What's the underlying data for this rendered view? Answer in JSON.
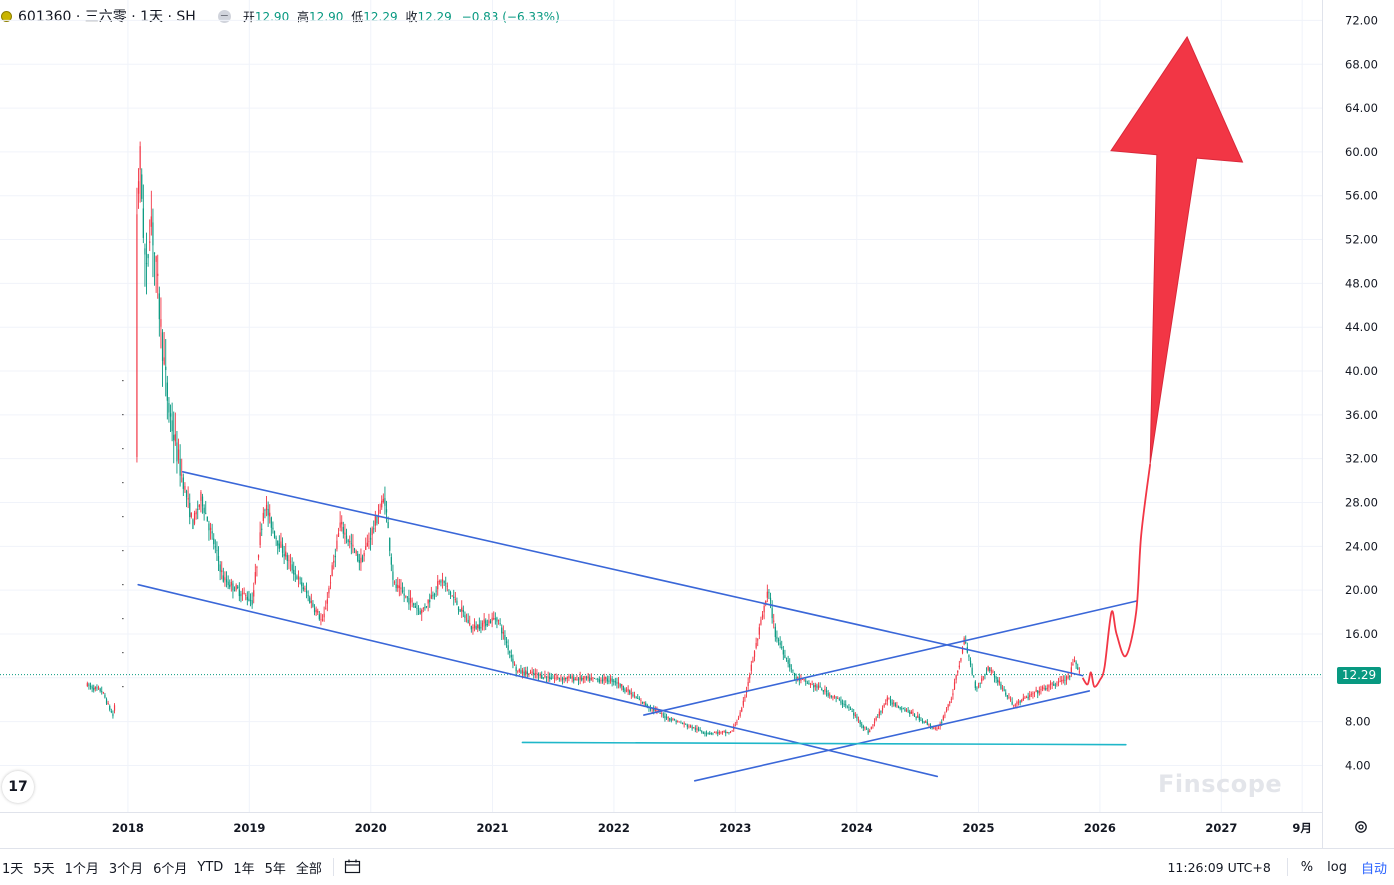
{
  "header": {
    "symbol": "601360 · 三六零 · 1天 · SH",
    "open_label": "开",
    "open": "12.90",
    "high_label": "高",
    "high": "12.90",
    "low_label": "低",
    "low": "12.29",
    "close_label": "收",
    "close": "12.29",
    "change": "−0.83 (−6.33%)"
  },
  "price_tag": "12.29",
  "watermark": "Finscope",
  "tv_logo": "17",
  "bottom_bar": {
    "ranges": [
      "1天",
      "5天",
      "1个月",
      "3个月",
      "6个月",
      "YTD",
      "1年",
      "5年",
      "全部"
    ],
    "clock": "11:26:09 UTC+8",
    "percent": "%",
    "log": "log",
    "auto": "自动"
  },
  "colors": {
    "up": "#f23645",
    "down": "#089981",
    "trendline": "#3a67d8",
    "support": "#1fb7c9",
    "arrow": "#f23645",
    "price_tag": "#089981"
  },
  "chart_data": {
    "type": "candlestick",
    "y_ticks": [
      4,
      8,
      12,
      16,
      20,
      24,
      28,
      32,
      36,
      40,
      44,
      48,
      52,
      56,
      60,
      64,
      68,
      72
    ],
    "y_tick_labels": [
      "4.00",
      "8.00",
      "",
      "16.00",
      "20.00",
      "24.00",
      "28.00",
      "32.00",
      "36.00",
      "40.00",
      "44.00",
      "48.00",
      "52.00",
      "56.00",
      "60.00",
      "64.00",
      "68.00",
      "72.00"
    ],
    "x_ticks": [
      "2018",
      "2019",
      "2020",
      "2021",
      "2022",
      "2023",
      "2024",
      "2025",
      "2026",
      "2027",
      "9月"
    ],
    "ylim": [
      0.3,
      73.5
    ],
    "last_price": 12.29,
    "price_path": [
      [
        "2017-09-01",
        11.3
      ],
      [
        "2017-10-15",
        10.8
      ],
      [
        "2017-11-20",
        8.3
      ],
      [
        "2018-02-05",
        60.0
      ],
      [
        "2018-02-25",
        48.0
      ],
      [
        "2018-03-10",
        55.0
      ],
      [
        "2018-04-10",
        44.0
      ],
      [
        "2018-05-01",
        37.0
      ],
      [
        "2018-06-01",
        32.0
      ],
      [
        "2018-07-15",
        26.0
      ],
      [
        "2018-08-10",
        28.5
      ],
      [
        "2018-10-15",
        21.0
      ],
      [
        "2019-01-10",
        19.0
      ],
      [
        "2019-02-15",
        28.0
      ],
      [
        "2019-03-20",
        25.0
      ],
      [
        "2019-05-10",
        22.0
      ],
      [
        "2019-08-10",
        17.0
      ],
      [
        "2019-10-01",
        26.0
      ],
      [
        "2019-12-01",
        22.5
      ],
      [
        "2020-02-12",
        28.5
      ],
      [
        "2020-03-10",
        20.5
      ],
      [
        "2020-06-01",
        18.0
      ],
      [
        "2020-08-01",
        21.0
      ],
      [
        "2020-11-01",
        16.5
      ],
      [
        "2021-01-15",
        17.5
      ],
      [
        "2021-03-15",
        12.6
      ],
      [
        "2021-07-01",
        12.0
      ],
      [
        "2022-01-01",
        11.8
      ],
      [
        "2022-03-15",
        10.0
      ],
      [
        "2022-06-01",
        8.5
      ],
      [
        "2022-10-01",
        7.0
      ],
      [
        "2022-12-20",
        7.0
      ],
      [
        "2023-01-20",
        9.0
      ],
      [
        "2023-04-10",
        20.0
      ],
      [
        "2023-05-01",
        16.0
      ],
      [
        "2023-07-01",
        12.0
      ],
      [
        "2023-09-15",
        11.0
      ],
      [
        "2023-12-01",
        9.5
      ],
      [
        "2024-02-05",
        7.0
      ],
      [
        "2024-04-01",
        10.0
      ],
      [
        "2024-06-01",
        9.0
      ],
      [
        "2024-09-01",
        7.2
      ],
      [
        "2024-10-15",
        10.5
      ],
      [
        "2024-11-20",
        15.5
      ],
      [
        "2024-12-25",
        11.0
      ],
      [
        "2025-02-01",
        13.0
      ],
      [
        "2025-04-15",
        9.5
      ],
      [
        "2025-07-01",
        10.8
      ],
      [
        "2025-10-01",
        12.0
      ],
      [
        "2025-10-15",
        13.6
      ],
      [
        "2025-11-01",
        12.29
      ]
    ],
    "annotations": {
      "upper_channel": [
        [
          "2018-06-15",
          30.8
        ],
        [
          "2025-11-10",
          12.2
        ]
      ],
      "lower_channel": [
        [
          "2018-02-01",
          20.5
        ],
        [
          "2024-08-30",
          3.0
        ]
      ],
      "upper_rising": [
        [
          "2022-04-01",
          8.6
        ],
        [
          "2026-04-20",
          19.0
        ]
      ],
      "lower_rising": [
        [
          "2022-09-01",
          2.6
        ],
        [
          "2025-11-30",
          10.8
        ]
      ],
      "support": [
        [
          "2021-04-01",
          6.1
        ],
        [
          "2026-03-20",
          5.9
        ]
      ],
      "forecast_curve": [
        [
          "2025-11-10",
          12.0
        ],
        [
          "2025-11-25",
          11.4
        ],
        [
          "2025-12-05",
          12.5
        ],
        [
          "2025-12-15",
          11.2
        ],
        [
          "2026-01-01",
          11.8
        ],
        [
          "2026-01-15",
          13.0
        ],
        [
          "2026-02-05",
          18.0
        ],
        [
          "2026-02-20",
          16.0
        ],
        [
          "2026-03-20",
          14.0
        ],
        [
          "2026-04-20",
          18.0
        ],
        [
          "2026-05-05",
          25.0
        ],
        [
          "2026-06-01",
          31.5
        ]
      ],
      "target_arrow": {
        "tail": [
          "2026-06-01",
          31.5
        ],
        "head": [
          "2026-09-20",
          70.5
        ]
      }
    }
  }
}
